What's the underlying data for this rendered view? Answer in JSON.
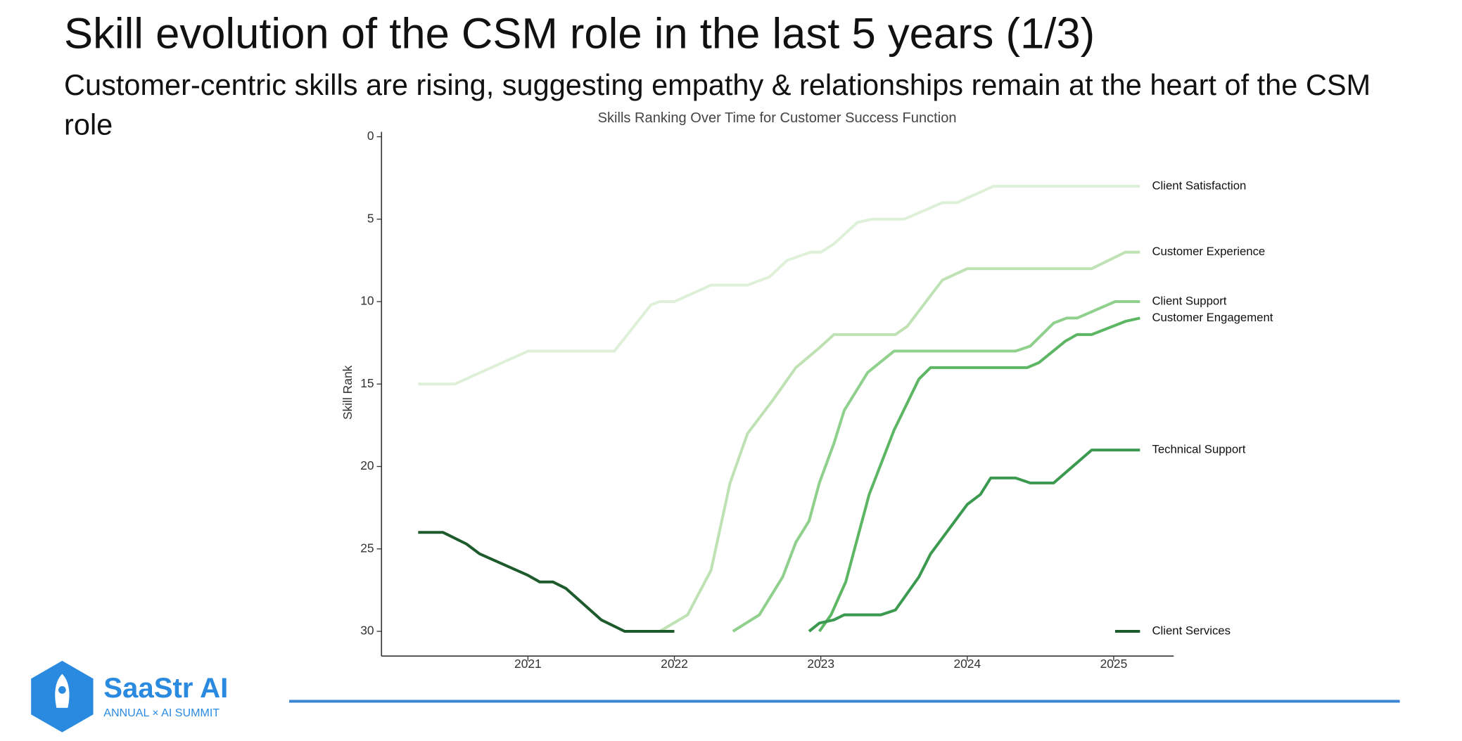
{
  "slide": {
    "title": "Skill evolution of the CSM role in the last 5 years (1/3)",
    "subtitle": "Customer-centric skills are rising, suggesting empathy & relationships remain at the heart of the CSM role",
    "logo": {
      "name": "SaaStr AI",
      "tagline": "ANNUAL × AI SUMMIT"
    }
  },
  "chart_data": {
    "type": "line",
    "title": "Skills Ranking Over Time for Customer Success Function",
    "y_label": "Skill Rank",
    "xlim": [
      2020.0,
      2025.41
    ],
    "xticks": [
      2021,
      2022,
      2023,
      2024,
      2025
    ],
    "ylim": [
      -0.3,
      31.5
    ],
    "y_inverted": true,
    "yticks": [
      0,
      5,
      10,
      15,
      20,
      25,
      30
    ],
    "series": [
      {
        "name": "Client Satisfaction",
        "color": "#dff0d8",
        "x": [
          2020.25,
          2020.5,
          2021,
          2021.59,
          2021.84,
          2021.9,
          2022,
          2022.25,
          2022.5,
          2022.65,
          2022.77,
          2022.93,
          2023,
          2023.09,
          2023.25,
          2023.35,
          2023.57,
          2023.83,
          2023.93,
          2024.18,
          2025.18
        ],
        "values": [
          15,
          15,
          13,
          13,
          10.2,
          10,
          10,
          9,
          9,
          8.5,
          7.5,
          7,
          7,
          6.5,
          5.2,
          5,
          5,
          4,
          4,
          3,
          3
        ]
      },
      {
        "name": "Customer Experience",
        "color": "#bfe2b4",
        "x": [
          2021.9,
          2022.09,
          2022.25,
          2022.38,
          2022.5,
          2022.67,
          2022.83,
          2022.99,
          2023.09,
          2023.51,
          2023.59,
          2023.83,
          2024,
          2024.85,
          2025.08,
          2025.18
        ],
        "values": [
          30,
          29,
          26.3,
          21,
          18,
          16,
          14,
          12.8,
          12,
          12,
          11.5,
          8.7,
          8,
          8,
          7,
          7
        ]
      },
      {
        "name": "Client Support",
        "color": "#8fd08c",
        "x": [
          2022.4,
          2022.58,
          2022.74,
          2022.83,
          2022.92,
          2022.99,
          2023.09,
          2023.16,
          2023.32,
          2023.5,
          2024.33,
          2024.43,
          2024.59,
          2024.68,
          2024.75,
          2025.01,
          2025.18
        ],
        "values": [
          30,
          29,
          26.7,
          24.6,
          23.3,
          21,
          18.6,
          16.6,
          14.3,
          13,
          13,
          12.7,
          11.3,
          11,
          11,
          10,
          10
        ]
      },
      {
        "name": "Customer Engagement",
        "color": "#5db663",
        "x": [
          2022.99,
          2023.07,
          2023.17,
          2023.33,
          2023.5,
          2023.67,
          2023.75,
          2024.41,
          2024.49,
          2024.67,
          2024.75,
          2024.85,
          2025.08,
          2025.18
        ],
        "values": [
          30,
          29,
          27,
          21.7,
          17.8,
          14.7,
          14,
          14,
          13.7,
          12.4,
          12,
          12,
          11.2,
          11
        ]
      },
      {
        "name": "Technical Support",
        "color": "#3b9a50",
        "x": [
          2022.92,
          2022.99,
          2023.09,
          2023.16,
          2023.41,
          2023.51,
          2023.67,
          2023.75,
          2024,
          2024.09,
          2024.16,
          2024.33,
          2024.43,
          2024.59,
          2024.85,
          2025.18
        ],
        "values": [
          30,
          29.5,
          29.3,
          29,
          29,
          28.7,
          26.7,
          25.3,
          22.3,
          21.7,
          20.7,
          20.7,
          21,
          21,
          19,
          19
        ]
      },
      {
        "name": "Client Services",
        "color": "#1d5a2c",
        "x": [
          2020.25,
          2020.42,
          2020.58,
          2020.67,
          2021,
          2021.08,
          2021.17,
          2021.26,
          2021.5,
          2021.66,
          2022,
          null,
          2025.01,
          2025.18
        ],
        "values": [
          24,
          24,
          24.7,
          25.3,
          26.6,
          27,
          27,
          27.4,
          29.3,
          30,
          30,
          null,
          30,
          30
        ]
      }
    ]
  }
}
